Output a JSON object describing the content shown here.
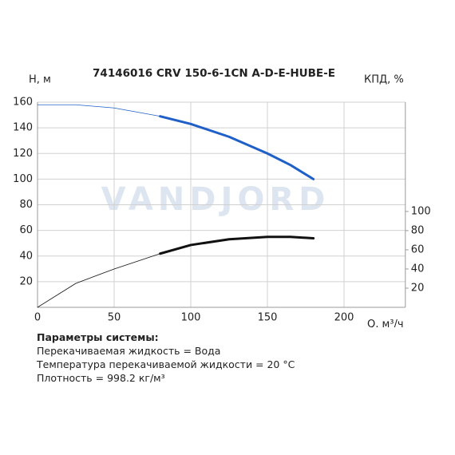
{
  "chart_data": {
    "type": "line",
    "title": "74146016 CRV 150-6-1CN A-D-E-HUBE-E",
    "watermark": "VANDJORD",
    "ylabel": "H, м",
    "y2label": "КПД, %",
    "xlabel": "Q, м³/ч",
    "xlim": [
      0,
      240
    ],
    "xticks": [
      0,
      50,
      100,
      150,
      200
    ],
    "ylim": [
      0,
      160
    ],
    "yticks": [
      20,
      40,
      60,
      80,
      100,
      120,
      140,
      160
    ],
    "y2lim": [
      0,
      214
    ],
    "y2ticks": [
      20,
      40,
      60,
      80,
      100
    ],
    "grid": true,
    "series": [
      {
        "x": [
          0,
          25,
          50,
          80
        ],
        "values": [
          158,
          158,
          155.5,
          149
        ],
        "color": "#1f5fc8",
        "width": 0.8
      },
      {
        "x": [
          80,
          100,
          125,
          150,
          165,
          180
        ],
        "values": [
          149,
          143,
          133,
          120,
          111,
          100
        ],
        "color": "#1f5fc8",
        "width": 3
      },
      {
        "x": [
          0,
          25,
          50,
          80
        ],
        "values": [
          0,
          25,
          40,
          56
        ],
        "color": "#111111",
        "width": 0.8,
        "axis": "y2"
      },
      {
        "x": [
          80,
          100,
          125,
          150,
          165,
          180
        ],
        "values": [
          56,
          65,
          71,
          73.5,
          73.5,
          72
        ],
        "color": "#111111",
        "width": 3,
        "axis": "y2"
      }
    ]
  },
  "parameters": {
    "heading": "Параметры системы:",
    "lines": [
      "Перекачиваемая жидкость = Вода",
      "Температура перекачиваемой жидкости = 20 °C",
      "Плотность = 998.2 кг/м³"
    ]
  }
}
